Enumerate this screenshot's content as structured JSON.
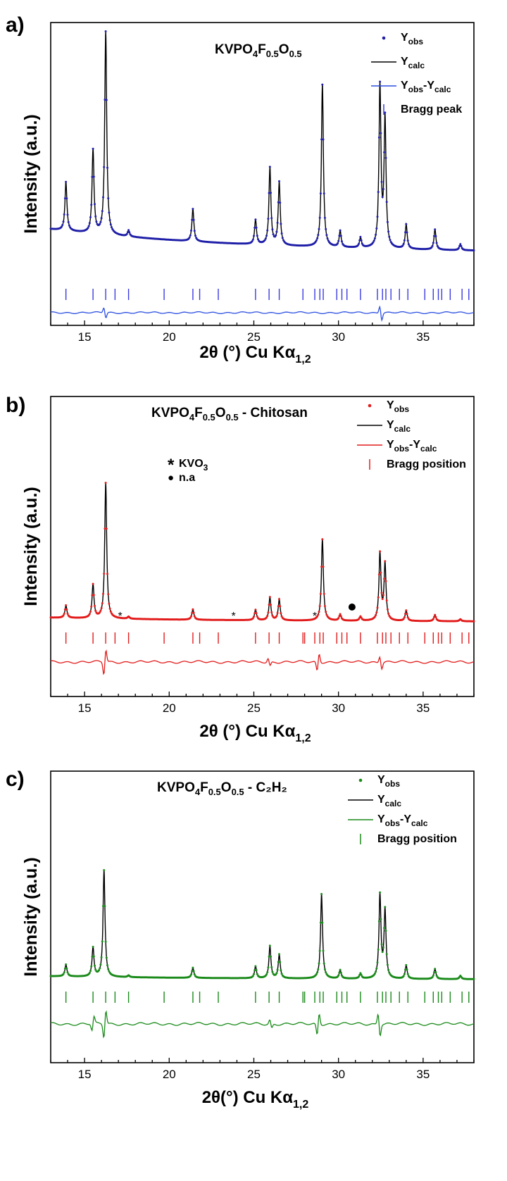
{
  "chart_data": [
    {
      "type": "line",
      "panel_label": "a)",
      "title_parts": [
        "KVPO",
        "4",
        "F",
        "0.5",
        "O",
        "0.5",
        ""
      ],
      "xlabel": {
        "main": "2θ (°) Cu Kα",
        "sub": "1,2"
      },
      "ylabel": "Intensity (a.u.)",
      "xlim": [
        13,
        38
      ],
      "x_ticks": [
        15,
        20,
        25,
        30,
        35
      ],
      "y_ticks_shown": false,
      "colors": {
        "obs": "#1f1fa8",
        "calc": "#000000",
        "diff": "#2b4fe0",
        "bragg": "#3a3ae0"
      },
      "legend": [
        {
          "kind": "dot",
          "base": "Y",
          "sub": "obs",
          "rest": ""
        },
        {
          "kind": "line",
          "base": "Y",
          "sub": "calc",
          "rest": ""
        },
        {
          "kind": "diff",
          "base": "Y",
          "sub": "obs",
          "rest": "-Y",
          "sub2": "calc"
        },
        {
          "kind": "bar",
          "base": "Bragg peak",
          "sub": "",
          "rest": ""
        }
      ],
      "series": [
        {
          "name": "Yobs",
          "background": 0.12,
          "peaks": [
            [
              13.9,
              0.24
            ],
            [
              15.5,
              0.41
            ],
            [
              16.25,
              1.0
            ],
            [
              17.6,
              0.03
            ],
            [
              21.4,
              0.16
            ],
            [
              25.1,
              0.12
            ],
            [
              25.95,
              0.38
            ],
            [
              26.5,
              0.31
            ],
            [
              29.05,
              0.8
            ],
            [
              30.1,
              0.08
            ],
            [
              31.3,
              0.05
            ],
            [
              32.45,
              0.79
            ],
            [
              32.75,
              0.63
            ],
            [
              34.0,
              0.12
            ],
            [
              35.7,
              0.1
            ],
            [
              37.2,
              0.03
            ]
          ]
        }
      ],
      "bragg_positions": [
        13.9,
        15.5,
        16.25,
        16.8,
        17.6,
        19.7,
        21.4,
        21.8,
        22.9,
        25.1,
        25.9,
        26.5,
        27.9,
        28.6,
        28.9,
        29.1,
        29.9,
        30.2,
        30.5,
        31.3,
        32.3,
        32.6,
        32.8,
        33.1,
        33.6,
        34.1,
        35.1,
        35.6,
        35.9,
        36.1,
        36.6,
        37.3,
        37.7
      ],
      "difference": [
        [
          16.2,
          0.6
        ],
        [
          32.5,
          0.8
        ]
      ],
      "markers": []
    },
    {
      "type": "line",
      "panel_label": "b)",
      "title_parts": [
        "KVPO",
        "4",
        "F",
        "0.5",
        "O",
        "0.5",
        " - Chitosan"
      ],
      "xlabel": {
        "main": "2θ (°) Cu Kα",
        "sub": "1,2"
      },
      "ylabel": "Intensity (a.u.)",
      "xlim": [
        13,
        38
      ],
      "x_ticks": [
        15,
        20,
        25,
        30,
        35
      ],
      "y_ticks_shown": false,
      "colors": {
        "obs": "#e21b1b",
        "calc": "#000000",
        "diff": "#e21b1b",
        "bragg": "#e21b1b"
      },
      "legend": [
        {
          "kind": "dot",
          "base": "Y",
          "sub": "obs",
          "rest": ""
        },
        {
          "kind": "line",
          "base": "Y",
          "sub": "calc",
          "rest": ""
        },
        {
          "kind": "diff",
          "base": "Y",
          "sub": "obs",
          "rest": "-Y",
          "sub2": "calc"
        },
        {
          "kind": "bar",
          "base": "Bragg position",
          "sub": "",
          "rest": ""
        }
      ],
      "phase_legend": [
        {
          "symbol": "*",
          "text": "KVO",
          "sub": "3"
        },
        {
          "symbol": "●",
          "text": "n.a",
          "sub": ""
        }
      ],
      "series": [
        {
          "name": "Yobs",
          "background": 0.02,
          "peaks": [
            [
              13.9,
              0.06
            ],
            [
              15.5,
              0.16
            ],
            [
              16.25,
              0.65
            ],
            [
              17.6,
              0.01
            ],
            [
              21.4,
              0.05
            ],
            [
              25.1,
              0.05
            ],
            [
              25.95,
              0.11
            ],
            [
              26.5,
              0.1
            ],
            [
              29.05,
              0.39
            ],
            [
              30.1,
              0.03
            ],
            [
              31.3,
              0.02
            ],
            [
              32.45,
              0.32
            ],
            [
              32.75,
              0.27
            ],
            [
              34.0,
              0.05
            ],
            [
              35.7,
              0.03
            ],
            [
              37.2,
              0.01
            ]
          ]
        }
      ],
      "bragg_positions": [
        13.9,
        15.5,
        16.25,
        16.8,
        17.6,
        19.7,
        21.4,
        21.8,
        22.9,
        25.1,
        25.9,
        26.5,
        27.9,
        28.0,
        28.6,
        28.9,
        29.1,
        29.9,
        30.2,
        30.5,
        31.3,
        32.3,
        32.6,
        32.8,
        33.1,
        33.6,
        34.1,
        35.1,
        35.6,
        35.9,
        36.1,
        36.6,
        37.3,
        37.7
      ],
      "difference": [
        [
          16.2,
          -1.0
        ],
        [
          28.8,
          -0.7
        ],
        [
          32.5,
          0.5
        ],
        [
          25.9,
          0.3
        ]
      ],
      "markers": [
        {
          "symbol": "*",
          "x": 17.1
        },
        {
          "symbol": "*",
          "x": 23.8
        },
        {
          "symbol": "*",
          "x": 28.6
        },
        {
          "symbol": "●",
          "x": 30.8
        }
      ]
    },
    {
      "type": "line",
      "panel_label": "c)",
      "title_parts": [
        "KVPO",
        "4",
        "F",
        "0.5",
        "O",
        "0.5",
        " - C₂H₂"
      ],
      "xlabel": {
        "main": "2θ(°) Cu Kα",
        "sub": "1,2"
      },
      "ylabel": "Intensity (a.u.)",
      "xlim": [
        13,
        38
      ],
      "x_ticks": [
        15,
        20,
        25,
        30,
        35
      ],
      "y_ticks_shown": false,
      "colors": {
        "obs": "#1a8a1a",
        "calc": "#000000",
        "diff": "#1a8a1a",
        "bragg": "#1a8a1a"
      },
      "legend": [
        {
          "kind": "dot",
          "base": "Y",
          "sub": "obs",
          "rest": ""
        },
        {
          "kind": "line",
          "base": "Y",
          "sub": "calc",
          "rest": ""
        },
        {
          "kind": "diff",
          "base": "Y",
          "sub": "obs",
          "rest": "-Y",
          "sub2": "calc"
        },
        {
          "kind": "bar",
          "base": "Bragg position",
          "sub": "",
          "rest": ""
        }
      ],
      "series": [
        {
          "name": "Yobs",
          "background": 0.02,
          "peaks": [
            [
              13.9,
              0.07
            ],
            [
              15.5,
              0.17
            ],
            [
              16.15,
              0.63
            ],
            [
              17.6,
              0.01
            ],
            [
              21.4,
              0.06
            ],
            [
              25.1,
              0.07
            ],
            [
              25.95,
              0.19
            ],
            [
              26.5,
              0.14
            ],
            [
              29.0,
              0.5
            ],
            [
              30.1,
              0.05
            ],
            [
              31.3,
              0.03
            ],
            [
              32.45,
              0.49
            ],
            [
              32.75,
              0.4
            ],
            [
              34.0,
              0.08
            ],
            [
              35.7,
              0.06
            ],
            [
              37.2,
              0.02
            ]
          ]
        }
      ],
      "bragg_positions": [
        13.9,
        15.5,
        16.25,
        16.8,
        17.6,
        19.7,
        21.4,
        21.8,
        22.9,
        25.1,
        25.9,
        26.5,
        27.9,
        28.0,
        28.6,
        28.9,
        29.1,
        29.9,
        30.2,
        30.5,
        31.3,
        32.3,
        32.6,
        32.8,
        33.1,
        33.6,
        34.1,
        35.1,
        35.6,
        35.9,
        36.1,
        36.6,
        37.3,
        37.7
      ],
      "difference": [
        [
          15.5,
          -0.5
        ],
        [
          16.2,
          -1.0
        ],
        [
          26.0,
          0.3
        ],
        [
          28.8,
          -0.8
        ],
        [
          32.4,
          0.8
        ]
      ],
      "markers": []
    }
  ]
}
